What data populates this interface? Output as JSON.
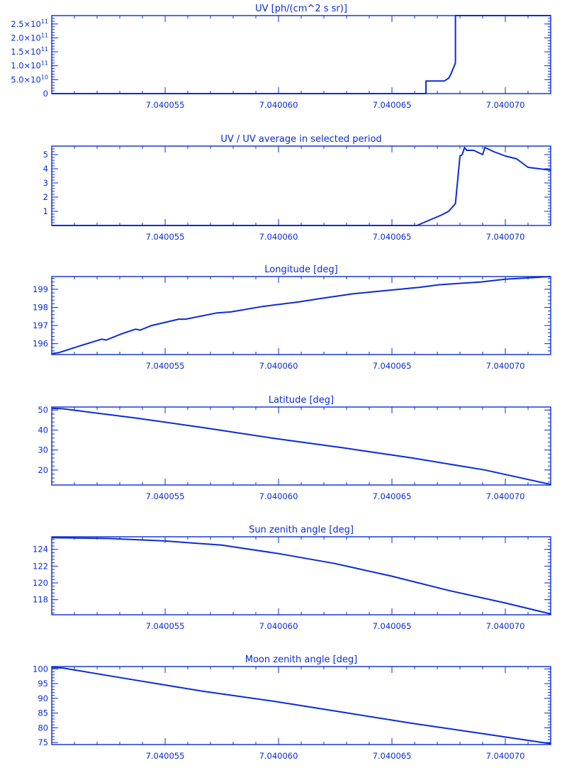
{
  "colors": {
    "line": "#0a2bd8",
    "background": "#ffffff"
  },
  "chart_data": [
    {
      "type": "line",
      "title": "UV [ph/(cm^2 s sr)]",
      "xlabel": "",
      "ylabel": "",
      "xlim": [
        7.04005,
        7.040072
      ],
      "ylim": [
        0,
        280000000000.0
      ],
      "x_ticks": [
        7.040055,
        7.04006,
        7.040065,
        7.04007
      ],
      "x_tick_labels": [
        "7.040055",
        "7.040060",
        "7.040065",
        "7.040070"
      ],
      "y_ticks": [
        0,
        50000000000.0,
        100000000000.0,
        150000000000.0,
        200000000000.0,
        250000000000.0
      ],
      "y_tick_labels": [
        {
          "mant": "0",
          "exp": ""
        },
        {
          "mant": "5.0×10",
          "exp": "10"
        },
        {
          "mant": "1.0×10",
          "exp": "11"
        },
        {
          "mant": "1.5×10",
          "exp": "11"
        },
        {
          "mant": "2.0×10",
          "exp": "11"
        },
        {
          "mant": "2.5×10",
          "exp": "11"
        }
      ],
      "step": true,
      "x": [
        7.04005,
        7.0400665,
        7.0400665,
        7.0400673,
        7.0400675,
        7.0400676,
        7.0400677,
        7.0400678,
        7.0400678,
        7.040072
      ],
      "y": [
        0,
        0,
        45000000000.0,
        45000000000.0,
        55000000000.0,
        70000000000.0,
        90000000000.0,
        110000000000.0,
        280000000000.0,
        280000000000.0
      ]
    },
    {
      "type": "line",
      "title": "UV / UV average in selected period",
      "xlabel": "",
      "ylabel": "",
      "xlim": [
        7.04005,
        7.040072
      ],
      "ylim": [
        0,
        5.6
      ],
      "x_ticks": [
        7.040055,
        7.04006,
        7.040065,
        7.04007
      ],
      "x_tick_labels": [
        "7.040055",
        "7.040060",
        "7.040065",
        "7.040070"
      ],
      "y_ticks": [
        1,
        2,
        3,
        4,
        5
      ],
      "y_tick_labels": [
        "1",
        "2",
        "3",
        "4",
        "5"
      ],
      "x": [
        7.04005,
        7.0400661,
        7.0400672,
        7.0400675,
        7.0400678,
        7.040068,
        7.0400681,
        7.0400682,
        7.0400683,
        7.0400686,
        7.040069,
        7.0400691,
        7.0400695,
        7.04007,
        7.0400705,
        7.040071,
        7.040072
      ],
      "y": [
        0,
        0,
        0.75,
        1.0,
        1.55,
        4.9,
        5.0,
        5.5,
        5.3,
        5.3,
        5.0,
        5.5,
        5.2,
        4.9,
        4.7,
        4.1,
        3.9
      ]
    },
    {
      "type": "line",
      "title": "Longitude [deg]",
      "xlabel": "",
      "ylabel": "",
      "xlim": [
        7.04005,
        7.040072
      ],
      "ylim": [
        195.4,
        199.7
      ],
      "x_ticks": [
        7.040055,
        7.04006,
        7.040065,
        7.04007
      ],
      "x_tick_labels": [
        "7.040055",
        "7.040060",
        "7.040065",
        "7.040070"
      ],
      "y_ticks": [
        196,
        197,
        198,
        199
      ],
      "y_tick_labels": [
        "196",
        "197",
        "198",
        "199"
      ],
      "x": [
        7.04005,
        7.0400503,
        7.0400513,
        7.0400522,
        7.0400524,
        7.0400531,
        7.0400537,
        7.0400539,
        7.0400544,
        7.0400556,
        7.0400559,
        7.0400573,
        7.0400579,
        7.0400593,
        7.0400609,
        7.0400619,
        7.0400633,
        7.0400641,
        7.0400662,
        7.0400671,
        7.0400689,
        7.04007,
        7.040072
      ],
      "y": [
        195.45,
        195.5,
        195.9,
        196.25,
        196.2,
        196.55,
        196.8,
        196.75,
        197.0,
        197.35,
        197.35,
        197.7,
        197.75,
        198.05,
        198.3,
        198.5,
        198.75,
        198.85,
        199.1,
        199.25,
        199.4,
        199.55,
        199.7
      ]
    },
    {
      "type": "line",
      "title": "Latitude [deg]",
      "xlabel": "",
      "ylabel": "",
      "xlim": [
        7.04005,
        7.040072
      ],
      "ylim": [
        12.5,
        51.5
      ],
      "x_ticks": [
        7.040055,
        7.04006,
        7.040065,
        7.04007
      ],
      "x_tick_labels": [
        "7.040055",
        "7.040060",
        "7.040065",
        "7.040070"
      ],
      "y_ticks": [
        20,
        30,
        40,
        50
      ],
      "y_tick_labels": [
        "20",
        "30",
        "40",
        "50"
      ],
      "x": [
        7.04005,
        7.0400505,
        7.0400537,
        7.0400568,
        7.0400597,
        7.0400629,
        7.0400659,
        7.0400691,
        7.040072
      ],
      "y": [
        50.9,
        50.6,
        46.0,
        41.0,
        36.0,
        31.0,
        26.0,
        20.0,
        12.8
      ]
    },
    {
      "type": "line",
      "title": "Sun zenith angle [deg]",
      "xlabel": "",
      "ylabel": "",
      "xlim": [
        7.04005,
        7.040072
      ],
      "ylim": [
        116.2,
        125.5
      ],
      "x_ticks": [
        7.040055,
        7.04006,
        7.040065,
        7.04007
      ],
      "x_tick_labels": [
        "7.040055",
        "7.040060",
        "7.040065",
        "7.040070"
      ],
      "y_ticks": [
        118,
        120,
        122,
        124
      ],
      "y_tick_labels": [
        "118",
        "120",
        "122",
        "124"
      ],
      "x": [
        7.04005,
        7.0400525,
        7.040055,
        7.0400575,
        7.04006,
        7.0400625,
        7.040065,
        7.0400675,
        7.04007,
        7.040072
      ],
      "y": [
        125.4,
        125.3,
        125.0,
        124.5,
        123.5,
        122.3,
        120.8,
        119.1,
        117.6,
        116.3
      ]
    },
    {
      "type": "line",
      "title": "Moon zenith angle [deg]",
      "xlabel": "",
      "ylabel": "",
      "xlim": [
        7.04005,
        7.040072
      ],
      "ylim": [
        74.3,
        100.8
      ],
      "x_ticks": [
        7.040055,
        7.04006,
        7.040065,
        7.04007
      ],
      "x_tick_labels": [
        "7.040055",
        "7.040060",
        "7.040065",
        "7.040070"
      ],
      "y_ticks": [
        75,
        80,
        85,
        90,
        95,
        100
      ],
      "y_tick_labels": [
        "75",
        "80",
        "85",
        "90",
        "95",
        "100"
      ],
      "x": [
        7.04005,
        7.0400505,
        7.0400536,
        7.0400566,
        7.0400598,
        7.0400628,
        7.0400659,
        7.040069,
        7.040072
      ],
      "y": [
        100.5,
        100.3,
        96.3,
        92.5,
        89.0,
        85.3,
        81.5,
        78.0,
        74.6
      ]
    }
  ]
}
